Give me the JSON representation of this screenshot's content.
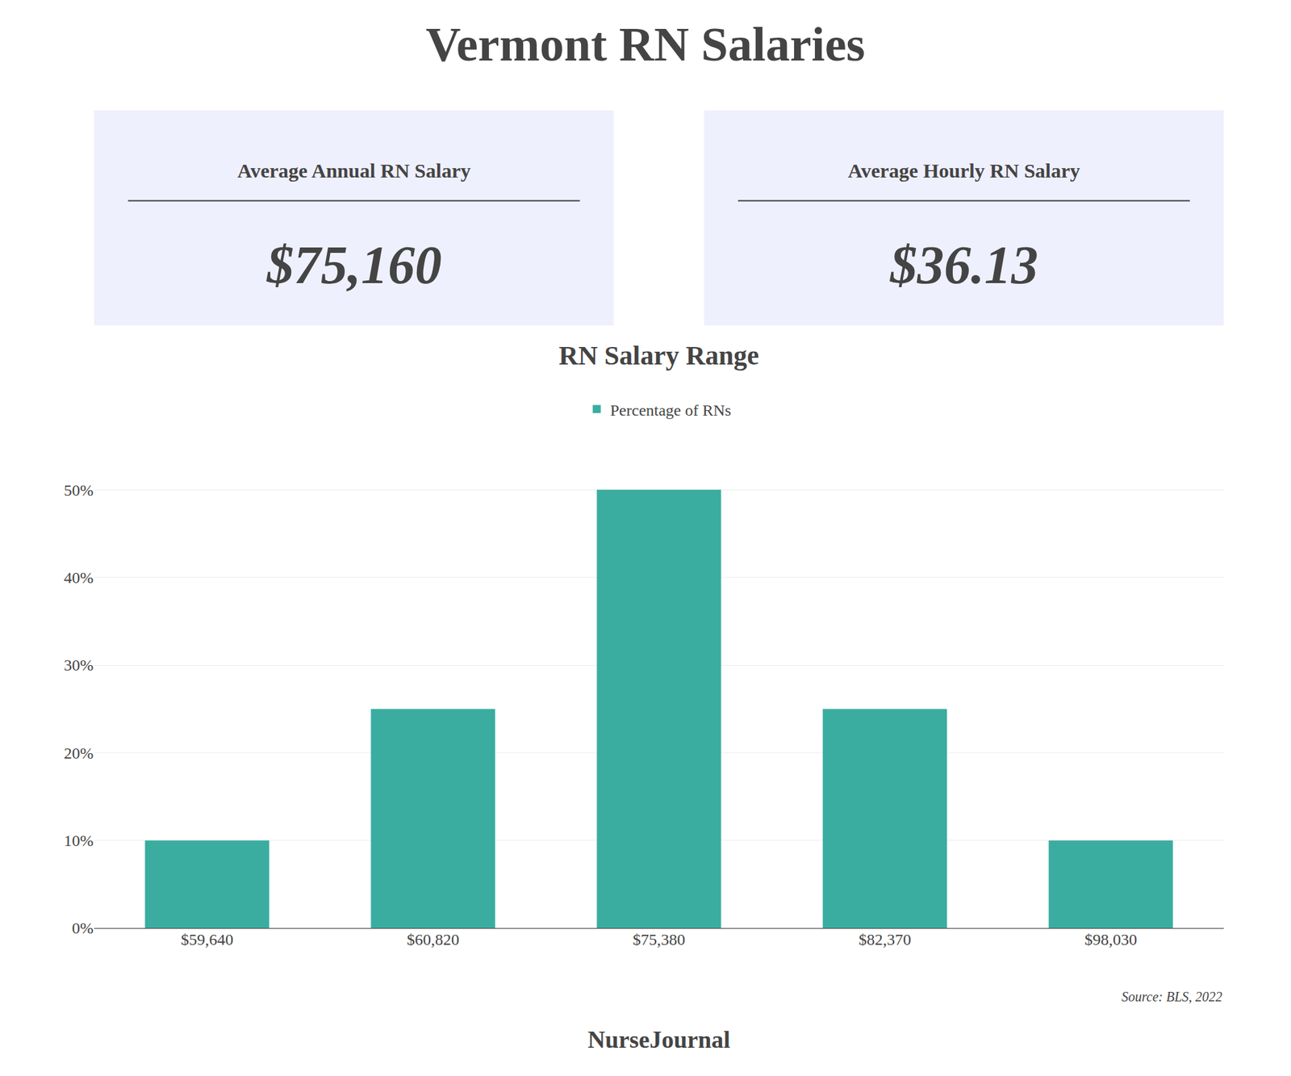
{
  "chart_data": {
    "type": "bar",
    "title": "Vermont RN Salaries",
    "subtitle": "RN Salary Range",
    "categories": [
      "$59,640",
      "$60,820",
      "$75,380",
      "$82,370",
      "$98,030"
    ],
    "series": [
      {
        "name": "Percentage of RNs",
        "color": "#3aada0",
        "values": [
          10,
          25,
          50,
          25,
          10
        ]
      }
    ],
    "ylim": [
      0,
      55
    ],
    "yticks": [
      {
        "value": 0,
        "label": "0%"
      },
      {
        "value": 10,
        "label": "10%"
      },
      {
        "value": 20,
        "label": "20%"
      },
      {
        "value": 30,
        "label": "30%"
      },
      {
        "value": 40,
        "label": "40%"
      },
      {
        "value": 50,
        "label": "50%"
      }
    ],
    "grid": true,
    "legend": "top",
    "annotations": [
      "Average Annual RN Salary",
      "$75,160",
      "Average Hourly RN Salary",
      "$36.13",
      "Source: BLS, 2022",
      "NurseJournal"
    ]
  }
}
